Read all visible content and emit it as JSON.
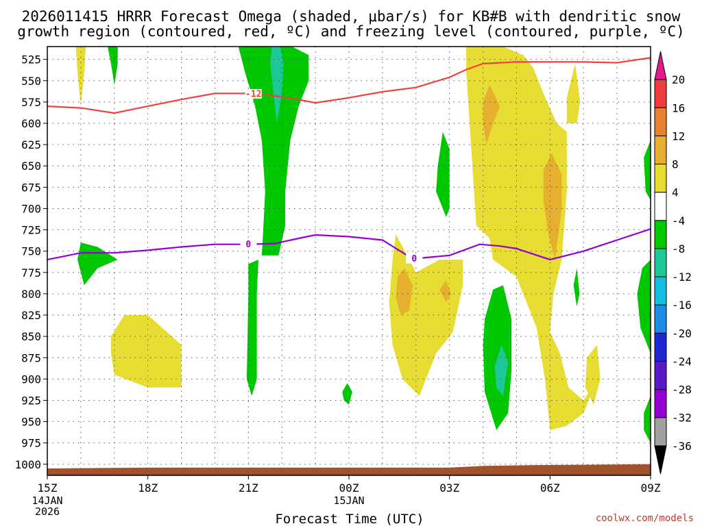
{
  "chart_data": {
    "type": "contour-time-height",
    "title": "2026011415 HRRR Forecast Omega (shaded, μbar/s) for KB#B with dendritic snow growth region (contoured, red, ºC) and freezing level (contoured, purple, ºC)",
    "title_lines": [
      "2026011415 HRRR Forecast Omega (shaded, μbar/s) for KB#B with dendritic snow",
      "growth region (contoured, red, ºC) and freezing level (contoured, purple, ºC)"
    ],
    "xlabel": "Forecast Time (UTC)",
    "credit": "coolwx.com/models",
    "x_range_hours": [
      0,
      18
    ],
    "x_ticks": [
      {
        "hour": 0,
        "label": "15Z",
        "sub": [
          "14JAN",
          "2026"
        ]
      },
      {
        "hour": 3,
        "label": "18Z",
        "sub": []
      },
      {
        "hour": 6,
        "label": "21Z",
        "sub": []
      },
      {
        "hour": 9,
        "label": "00Z",
        "sub": [
          "15JAN"
        ]
      },
      {
        "hour": 12,
        "label": "03Z",
        "sub": []
      },
      {
        "hour": 15,
        "label": "06Z",
        "sub": []
      },
      {
        "hour": 18,
        "label": "09Z",
        "sub": []
      }
    ],
    "y_axis": "pressure (mb), increasing downward",
    "y_range_mb": [
      510,
      1013
    ],
    "y_ticks": [
      525,
      550,
      575,
      600,
      625,
      650,
      675,
      700,
      725,
      750,
      775,
      800,
      825,
      850,
      875,
      900,
      925,
      950,
      975,
      1000
    ],
    "colorbar": {
      "levels": [
        -36,
        -32,
        -28,
        -24,
        -20,
        -16,
        -12,
        -8,
        -4,
        4,
        8,
        12,
        16,
        20
      ],
      "colors": [
        "#000000",
        "#a0a0a0",
        "#9400d3",
        "#5a18c8",
        "#1e28d2",
        "#1e8ce6",
        "#14bedc",
        "#1ec896",
        "#00c800",
        "#ffffff",
        "#e6dc32",
        "#e6af2d",
        "#e68232",
        "#f03c3c",
        "#e6198c"
      ]
    },
    "fills": [
      {
        "name": "omega-yellow-18z",
        "color": "#e6dc32",
        "points": [
          [
            1.9,
            870
          ],
          [
            1.9,
            850
          ],
          [
            2.3,
            825
          ],
          [
            3.0,
            825
          ],
          [
            4.0,
            860
          ],
          [
            4.0,
            910
          ],
          [
            3.0,
            910
          ],
          [
            2.0,
            895
          ]
        ]
      },
      {
        "name": "omega-green-16z",
        "color": "#00c800",
        "points": [
          [
            0.9,
            760
          ],
          [
            1.0,
            740
          ],
          [
            1.5,
            745
          ],
          [
            2.1,
            760
          ],
          [
            1.5,
            770
          ],
          [
            1.1,
            790
          ]
        ]
      },
      {
        "name": "omega-yellow-top-16z",
        "color": "#e6dc32",
        "points": [
          [
            0.85,
            510
          ],
          [
            1.15,
            510
          ],
          [
            1.1,
            540
          ],
          [
            1.0,
            580
          ],
          [
            0.9,
            540
          ]
        ]
      },
      {
        "name": "omega-green-top-17z",
        "color": "#00c800",
        "points": [
          [
            1.8,
            510
          ],
          [
            2.1,
            510
          ],
          [
            2.1,
            530
          ],
          [
            2.0,
            555
          ],
          [
            1.9,
            530
          ]
        ]
      },
      {
        "name": "omega-green-plume-22z",
        "color": "#00c800",
        "points": [
          [
            5.7,
            510
          ],
          [
            7.3,
            510
          ],
          [
            7.8,
            520
          ],
          [
            7.8,
            550
          ],
          [
            7.5,
            580
          ],
          [
            7.25,
            620
          ],
          [
            7.1,
            680
          ],
          [
            7.1,
            720
          ],
          [
            6.9,
            755
          ],
          [
            6.4,
            755
          ],
          [
            6.45,
            720
          ],
          [
            6.5,
            680
          ],
          [
            6.4,
            620
          ],
          [
            6.2,
            580
          ],
          [
            5.9,
            540
          ]
        ]
      },
      {
        "name": "omega-teal-plume-22z",
        "color": "#1ec896",
        "points": [
          [
            6.7,
            510
          ],
          [
            6.95,
            510
          ],
          [
            7.05,
            530
          ],
          [
            7.0,
            565
          ],
          [
            6.85,
            600
          ],
          [
            6.75,
            565
          ],
          [
            6.65,
            530
          ]
        ]
      },
      {
        "name": "omega-green-21z",
        "color": "#00c800",
        "points": [
          [
            6.0,
            765
          ],
          [
            6.3,
            760
          ],
          [
            6.25,
            800
          ],
          [
            6.25,
            900
          ],
          [
            6.1,
            920
          ],
          [
            5.95,
            900
          ],
          [
            6.0,
            800
          ]
        ]
      },
      {
        "name": "omega-green-00z",
        "color": "#00c800",
        "points": [
          [
            8.8,
            915
          ],
          [
            8.95,
            905
          ],
          [
            9.1,
            915
          ],
          [
            9.0,
            930
          ],
          [
            8.85,
            925
          ]
        ]
      },
      {
        "name": "omega-green-02z",
        "color": "#00c800",
        "points": [
          [
            11.65,
            650
          ],
          [
            11.8,
            610
          ],
          [
            12.0,
            630
          ],
          [
            12.0,
            700
          ],
          [
            11.9,
            710
          ],
          [
            11.6,
            680
          ]
        ]
      },
      {
        "name": "omega-yellow-main-00z",
        "color": "#e6dc32",
        "points": [
          [
            10.4,
            730
          ],
          [
            11.0,
            775
          ],
          [
            11.7,
            760
          ],
          [
            12.4,
            760
          ],
          [
            12.4,
            790
          ],
          [
            12.1,
            845
          ],
          [
            11.6,
            870
          ],
          [
            11.1,
            920
          ],
          [
            10.6,
            900
          ],
          [
            10.3,
            860
          ],
          [
            10.2,
            810
          ],
          [
            10.3,
            760
          ]
        ]
      },
      {
        "name": "omega-orange-0030z",
        "color": "#e6af2d",
        "points": [
          [
            10.45,
            780
          ],
          [
            10.65,
            770
          ],
          [
            10.9,
            790
          ],
          [
            10.8,
            820
          ],
          [
            10.55,
            825
          ],
          [
            10.4,
            805
          ]
        ]
      },
      {
        "name": "omega-orange-0230z",
        "color": "#e6af2d",
        "points": [
          [
            11.7,
            795
          ],
          [
            11.9,
            785
          ],
          [
            12.05,
            800
          ],
          [
            11.9,
            810
          ]
        ]
      },
      {
        "name": "omega-yellow-main-05z",
        "color": "#e6dc32",
        "points": [
          [
            12.5,
            510
          ],
          [
            13.6,
            510
          ],
          [
            14.2,
            520
          ],
          [
            14.5,
            535
          ],
          [
            14.8,
            565
          ],
          [
            15.2,
            600
          ],
          [
            15.5,
            610
          ],
          [
            15.5,
            680
          ],
          [
            15.35,
            760
          ],
          [
            15.1,
            800
          ],
          [
            15.0,
            845
          ],
          [
            15.3,
            870
          ],
          [
            15.55,
            910
          ],
          [
            16.0,
            925
          ],
          [
            16.4,
            900
          ],
          [
            16.0,
            940
          ],
          [
            15.5,
            955
          ],
          [
            15.0,
            960
          ],
          [
            14.85,
            900
          ],
          [
            14.6,
            840
          ],
          [
            14.0,
            780
          ],
          [
            13.3,
            760
          ],
          [
            13.2,
            735
          ],
          [
            12.8,
            720
          ],
          [
            12.7,
            660
          ],
          [
            12.6,
            600
          ],
          [
            12.5,
            540
          ]
        ]
      },
      {
        "name": "omega-orange-04z",
        "color": "#e6af2d",
        "points": [
          [
            13.0,
            575
          ],
          [
            13.2,
            555
          ],
          [
            13.5,
            580
          ],
          [
            13.3,
            600
          ],
          [
            13.1,
            625
          ],
          [
            13.0,
            600
          ]
        ]
      },
      {
        "name": "omega-orange-06z",
        "color": "#e6af2d",
        "points": [
          [
            14.8,
            655
          ],
          [
            15.05,
            635
          ],
          [
            15.35,
            660
          ],
          [
            15.35,
            700
          ],
          [
            15.15,
            760
          ],
          [
            14.95,
            730
          ],
          [
            14.8,
            690
          ]
        ]
      },
      {
        "name": "omega-yellow-07z",
        "color": "#e6dc32",
        "points": [
          [
            15.5,
            570
          ],
          [
            15.75,
            530
          ],
          [
            15.9,
            575
          ],
          [
            15.8,
            600
          ],
          [
            15.5,
            600
          ]
        ]
      },
      {
        "name": "omega-yellow-08z",
        "color": "#e6dc32",
        "points": [
          [
            16.1,
            875
          ],
          [
            16.4,
            860
          ],
          [
            16.5,
            900
          ],
          [
            16.3,
            930
          ],
          [
            16.05,
            910
          ]
        ]
      },
      {
        "name": "omega-green-05z",
        "color": "#00c800",
        "points": [
          [
            13.05,
            830
          ],
          [
            13.3,
            795
          ],
          [
            13.6,
            790
          ],
          [
            13.85,
            830
          ],
          [
            13.85,
            890
          ],
          [
            13.75,
            940
          ],
          [
            13.4,
            960
          ],
          [
            13.05,
            915
          ],
          [
            13.0,
            860
          ]
        ]
      },
      {
        "name": "omega-teal-05z",
        "color": "#1ec896",
        "points": [
          [
            13.35,
            885
          ],
          [
            13.55,
            860
          ],
          [
            13.75,
            880
          ],
          [
            13.6,
            920
          ],
          [
            13.4,
            910
          ]
        ]
      },
      {
        "name": "omega-green-07z",
        "color": "#00c800",
        "points": [
          [
            15.7,
            790
          ],
          [
            15.8,
            770
          ],
          [
            15.88,
            800
          ],
          [
            15.8,
            815
          ]
        ]
      },
      {
        "name": "omega-green-edge-upper",
        "color": "#00c800",
        "points": [
          [
            17.8,
            640
          ],
          [
            18.0,
            620
          ],
          [
            18.0,
            690
          ],
          [
            17.85,
            680
          ]
        ]
      },
      {
        "name": "omega-green-edge-mid",
        "color": "#00c800",
        "points": [
          [
            17.6,
            800
          ],
          [
            17.75,
            770
          ],
          [
            18.0,
            760
          ],
          [
            18.0,
            870
          ],
          [
            17.7,
            840
          ]
        ]
      },
      {
        "name": "omega-green-edge-low",
        "color": "#00c800",
        "points": [
          [
            17.8,
            940
          ],
          [
            18.0,
            920
          ],
          [
            18.0,
            975
          ],
          [
            17.8,
            960
          ]
        ]
      }
    ],
    "dendritic_line": {
      "name": "dendritic-minus12-contour",
      "color": "#f04040",
      "label": "-12",
      "label_hour": 6.15,
      "points": [
        [
          0,
          580
        ],
        [
          1.0,
          582
        ],
        [
          2.0,
          588
        ],
        [
          3.0,
          580
        ],
        [
          4.0,
          572
        ],
        [
          5.0,
          565
        ],
        [
          6.0,
          565
        ],
        [
          6.6,
          567
        ],
        [
          7.2,
          570
        ],
        [
          8.0,
          576
        ],
        [
          9.0,
          570
        ],
        [
          10.0,
          563
        ],
        [
          11.0,
          558
        ],
        [
          12.0,
          546
        ],
        [
          12.5,
          537
        ],
        [
          13.0,
          530
        ],
        [
          14.0,
          528
        ],
        [
          15.0,
          528
        ],
        [
          16.0,
          528
        ],
        [
          17.0,
          529
        ],
        [
          18.0,
          523
        ]
      ]
    },
    "freezing_line": {
      "name": "freezing-level-contour",
      "color": "#9400d3",
      "label": "0",
      "label_hour": 6.0,
      "label2_hour": 10.95,
      "points": [
        [
          0,
          760
        ],
        [
          1.0,
          752
        ],
        [
          2.0,
          752
        ],
        [
          3.0,
          749
        ],
        [
          4.0,
          745
        ],
        [
          5.0,
          742
        ],
        [
          6.0,
          742
        ],
        [
          6.8,
          741
        ],
        [
          7.5,
          735
        ],
        [
          8.0,
          731
        ],
        [
          9.0,
          733
        ],
        [
          10.0,
          737
        ],
        [
          10.9,
          759
        ],
        [
          12.0,
          755
        ],
        [
          12.9,
          742
        ],
        [
          13.5,
          744
        ],
        [
          14.0,
          747
        ],
        [
          15.0,
          760
        ],
        [
          16.0,
          750
        ],
        [
          17.0,
          737
        ],
        [
          18.0,
          724
        ]
      ]
    },
    "ground": {
      "name": "terrain-fill",
      "color": "#a0522d",
      "surface_points": [
        [
          0,
          1005
        ],
        [
          3.0,
          1004
        ],
        [
          6.0,
          1004
        ],
        [
          9.0,
          1004
        ],
        [
          12.0,
          1004
        ],
        [
          13.0,
          1002
        ],
        [
          14.5,
          1001
        ],
        [
          18.0,
          1000
        ]
      ]
    }
  }
}
